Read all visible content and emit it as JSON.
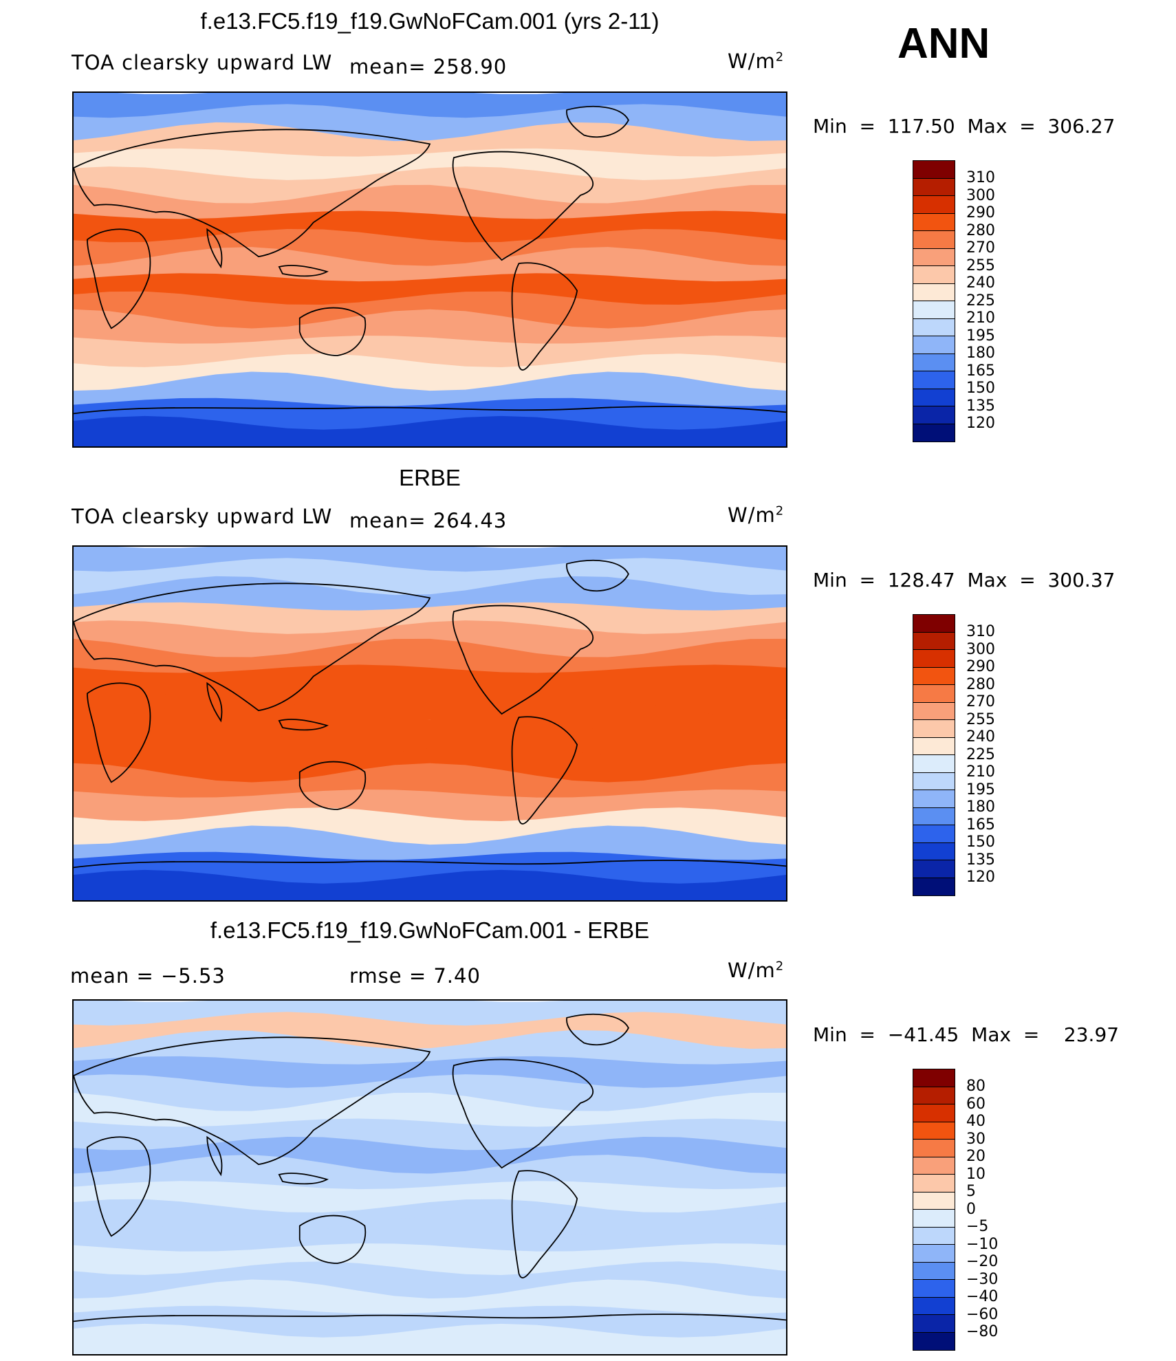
{
  "season": "ANN",
  "panels": [
    {
      "title": "f.e13.FC5.f19_f19.GwNoFCam.001 (yrs 2-11)",
      "left_label": "TOA clearsky upward LW",
      "stat1": "mean= 258.90",
      "stat2": "",
      "units": "W/m",
      "units_sup": "2",
      "minmax": "Min  =  117.50  Max  =  306.27",
      "levels": [
        "310",
        "300",
        "290",
        "280",
        "270",
        "255",
        "240",
        "225",
        "210",
        "195",
        "180",
        "165",
        "150",
        "135",
        "120"
      ],
      "colors": [
        "#7f0000",
        "#b51e00",
        "#d73000",
        "#f25410",
        "#f67a45",
        "#f9a07a",
        "#fcc8aa",
        "#fde9d6",
        "#dcecfb",
        "#bdd7fb",
        "#8fb5f8",
        "#5b8ff2",
        "#2d63ec",
        "#1240d2",
        "#0a25a8",
        "#000f78"
      ],
      "zones": [
        "#5b8ff2",
        "#8fb5f8",
        "#fcc8aa",
        "#fde9d6",
        "#fcc8aa",
        "#f9a07a",
        "#f25410",
        "#f67a45",
        "#f9a07a",
        "#f25410",
        "#f67a45",
        "#f9a07a",
        "#fcc8aa",
        "#fde9d6",
        "#8fb5f8",
        "#2d63ec",
        "#1240d2"
      ]
    },
    {
      "title": "ERBE",
      "left_label": "TOA clearsky upward LW",
      "stat1": "mean= 264.43",
      "stat2": "",
      "units": "W/m",
      "units_sup": "2",
      "minmax": "Min  =  128.47  Max  =  300.37",
      "levels": [
        "310",
        "300",
        "290",
        "280",
        "270",
        "255",
        "240",
        "225",
        "210",
        "195",
        "180",
        "165",
        "150",
        "135",
        "120"
      ],
      "colors": [
        "#7f0000",
        "#b51e00",
        "#d73000",
        "#f25410",
        "#f67a45",
        "#f9a07a",
        "#fcc8aa",
        "#fde9d6",
        "#dcecfb",
        "#bdd7fb",
        "#8fb5f8",
        "#5b8ff2",
        "#2d63ec",
        "#1240d2",
        "#0a25a8",
        "#000f78"
      ],
      "zones": [
        "#8fb5f8",
        "#bdd7fb",
        "#8fb5f8",
        "#fcc8aa",
        "#f9a07a",
        "#f67a45",
        "#f25410",
        "#f25410",
        "#f25410",
        "#f25410",
        "#f25410",
        "#f67a45",
        "#f9a07a",
        "#fde9d6",
        "#8fb5f8",
        "#2d63ec",
        "#1240d2"
      ]
    },
    {
      "title": "f.e13.FC5.f19_f19.GwNoFCam.001 - ERBE",
      "left_label": "mean =    −5.53",
      "stat1": "rmse =     7.40",
      "stat2": "",
      "units": "W/m",
      "units_sup": "2",
      "minmax": "Min  =  −41.45  Max  =    23.97",
      "levels": [
        "80",
        "60",
        "40",
        "30",
        "20",
        "10",
        "5",
        "0",
        "−5",
        "−10",
        "−20",
        "−30",
        "−40",
        "−60",
        "−80"
      ],
      "colors": [
        "#7f0000",
        "#b51e00",
        "#d73000",
        "#f25410",
        "#f67a45",
        "#f9a07a",
        "#fcc8aa",
        "#fde9d6",
        "#dcecfb",
        "#bdd7fb",
        "#8fb5f8",
        "#5b8ff2",
        "#2d63ec",
        "#1240d2",
        "#0a25a8",
        "#000f78"
      ],
      "zones": [
        "#bdd7fb",
        "#fcc8aa",
        "#bdd7fb",
        "#8fb5f8",
        "#bdd7fb",
        "#dcecfb",
        "#bdd7fb",
        "#8fb5f8",
        "#bdd7fb",
        "#dcecfb",
        "#bdd7fb",
        "#bdd7fb",
        "#dcecfb",
        "#bdd7fb",
        "#dcecfb",
        "#bdd7fb",
        "#dcecfb"
      ]
    }
  ]
}
